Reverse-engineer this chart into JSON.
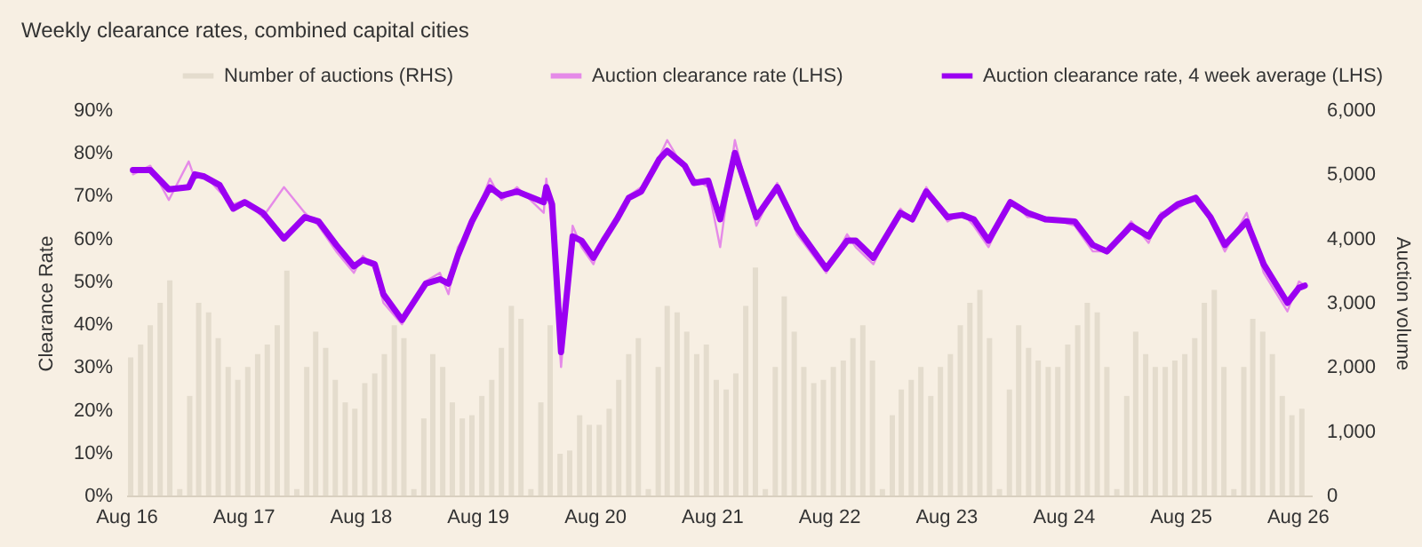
{
  "chart_data": {
    "type": "line",
    "title": "Weekly clearance rates, combined capital cities",
    "ylabel": "Clearance Rate",
    "y2label": "Auction volume",
    "legend": "top",
    "xlim": [
      "2016-08-01",
      "2026-09-15"
    ],
    "xticks": [
      {
        "value": "2016-08-01",
        "label": "Aug 16"
      },
      {
        "value": "2017-08-01",
        "label": "Aug 17"
      },
      {
        "value": "2018-08-01",
        "label": "Aug 18"
      },
      {
        "value": "2019-08-01",
        "label": "Aug 19"
      },
      {
        "value": "2020-08-01",
        "label": "Aug 20"
      },
      {
        "value": "2021-08-01",
        "label": "Aug 21"
      },
      {
        "value": "2022-08-01",
        "label": "Aug 22"
      },
      {
        "value": "2023-08-01",
        "label": "Aug 23"
      },
      {
        "value": "2024-08-01",
        "label": "Aug 24"
      },
      {
        "value": "2025-08-01",
        "label": "Aug 25"
      },
      {
        "value": "2026-08-01",
        "label": "Aug 26"
      }
    ],
    "ylim": [
      0,
      90
    ],
    "yticks": [
      {
        "value": 0,
        "label": "0%"
      },
      {
        "value": 10,
        "label": "10%"
      },
      {
        "value": 20,
        "label": "20%"
      },
      {
        "value": 30,
        "label": "30%"
      },
      {
        "value": 40,
        "label": "40%"
      },
      {
        "value": 50,
        "label": "50%"
      },
      {
        "value": 60,
        "label": "60%"
      },
      {
        "value": 70,
        "label": "70%"
      },
      {
        "value": 80,
        "label": "80%"
      },
      {
        "value": 90,
        "label": "90%"
      }
    ],
    "y2lim": [
      0,
      6000
    ],
    "y2ticks": [
      0,
      {
        "value": 1000,
        "label": "1,000"
      },
      {
        "value": 2000,
        "label": "2,000"
      },
      {
        "value": 3000,
        "label": "3,000"
      },
      {
        "value": 4000,
        "label": "4,000"
      },
      {
        "value": 5000,
        "label": "5,000"
      },
      {
        "value": 6000,
        "label": "6,000"
      }
    ],
    "series": [
      {
        "name": "Number of auctions (RHS)",
        "type": "bar",
        "axis": "y2",
        "color": "#e4dccd",
        "x": [
          "2016-08-15",
          "2016-09-15",
          "2016-10-15",
          "2016-11-15",
          "2016-12-15",
          "2017-01-15",
          "2017-02-15",
          "2017-03-15",
          "2017-04-15",
          "2017-05-15",
          "2017-06-15",
          "2017-07-15",
          "2017-08-15",
          "2017-09-15",
          "2017-10-15",
          "2017-11-15",
          "2017-12-15",
          "2018-01-15",
          "2018-02-15",
          "2018-03-15",
          "2018-04-15",
          "2018-05-15",
          "2018-06-15",
          "2018-07-15",
          "2018-08-15",
          "2018-09-15",
          "2018-10-15",
          "2018-11-15",
          "2018-12-15",
          "2019-01-15",
          "2019-02-15",
          "2019-03-15",
          "2019-04-15",
          "2019-05-15",
          "2019-06-15",
          "2019-07-15",
          "2019-08-15",
          "2019-09-15",
          "2019-10-15",
          "2019-11-15",
          "2019-12-15",
          "2020-01-15",
          "2020-02-15",
          "2020-03-15",
          "2020-04-15",
          "2020-05-15",
          "2020-06-15",
          "2020-07-15",
          "2020-08-15",
          "2020-09-15",
          "2020-10-15",
          "2020-11-15",
          "2020-12-15",
          "2021-01-15",
          "2021-02-15",
          "2021-03-15",
          "2021-04-15",
          "2021-05-15",
          "2021-06-15",
          "2021-07-15",
          "2021-08-15",
          "2021-09-15",
          "2021-10-15",
          "2021-11-15",
          "2021-12-15",
          "2022-01-15",
          "2022-02-15",
          "2022-03-15",
          "2022-04-15",
          "2022-05-15",
          "2022-06-15",
          "2022-07-15",
          "2022-08-15",
          "2022-09-15",
          "2022-10-15",
          "2022-11-15",
          "2022-12-15",
          "2023-01-15",
          "2023-02-15",
          "2023-03-15",
          "2023-04-15",
          "2023-05-15",
          "2023-06-15",
          "2023-07-15",
          "2023-08-15",
          "2023-09-15",
          "2023-10-15",
          "2023-11-15",
          "2023-12-15",
          "2024-01-15",
          "2024-02-15",
          "2024-03-15",
          "2024-04-15",
          "2024-05-15",
          "2024-06-15",
          "2024-07-15",
          "2024-08-15",
          "2024-09-15",
          "2024-10-15",
          "2024-11-15",
          "2024-12-15",
          "2025-01-15",
          "2025-02-15",
          "2025-03-15",
          "2025-04-15",
          "2025-05-15",
          "2025-06-15",
          "2025-07-15",
          "2025-08-15",
          "2025-09-15",
          "2025-10-15",
          "2025-11-15",
          "2025-12-15",
          "2026-01-15",
          "2026-02-15",
          "2026-03-15",
          "2026-04-15",
          "2026-05-15",
          "2026-06-15",
          "2026-07-15",
          "2026-08-15"
        ],
        "values": [
          2150,
          2350,
          2650,
          3000,
          3350,
          100,
          1550,
          3000,
          2850,
          2450,
          2000,
          1800,
          2000,
          2200,
          2350,
          2650,
          3500,
          100,
          2000,
          2550,
          2300,
          1800,
          1450,
          1350,
          1750,
          1900,
          2200,
          2650,
          2450,
          100,
          1200,
          2200,
          2000,
          1450,
          1200,
          1250,
          1550,
          1800,
          2300,
          2950,
          2750,
          100,
          1450,
          2650,
          650,
          700,
          1250,
          1100,
          1100,
          1350,
          1800,
          2200,
          2450,
          100,
          2000,
          2950,
          2850,
          2550,
          2200,
          2350,
          1800,
          1650,
          1900,
          2950,
          3550,
          100,
          2000,
          3100,
          2550,
          2000,
          1750,
          1800,
          2000,
          2100,
          2450,
          2650,
          2100,
          100,
          1250,
          1650,
          1800,
          2000,
          1550,
          2000,
          2200,
          2650,
          3000,
          3200,
          2450,
          100,
          1650,
          2650,
          2300,
          2100,
          2000,
          2000,
          2350,
          2650,
          3000,
          2850,
          2000,
          100,
          1550,
          2550,
          2200,
          2000,
          2000,
          2100,
          2200,
          2450,
          3000,
          3200,
          2000,
          100,
          2000,
          2750,
          2550,
          2200,
          1550,
          1250,
          1350
        ]
      },
      {
        "name": "Auction clearance rate (LHS)",
        "color": "#e58ae8",
        "x": [
          "2016-08-22",
          "2016-10-15",
          "2016-12-12",
          "2017-02-12",
          "2017-03-03",
          "2017-04-01",
          "2017-05-19",
          "2017-07-01",
          "2017-08-06",
          "2017-10-01",
          "2017-12-06",
          "2018-02-09",
          "2018-03-24",
          "2018-05-18",
          "2018-07-12",
          "2018-08-09",
          "2018-09-15",
          "2018-10-12",
          "2018-12-09",
          "2019-02-21",
          "2019-04-06",
          "2019-05-03",
          "2019-06-01",
          "2019-07-15",
          "2019-09-09",
          "2019-10-15",
          "2019-12-03",
          "2020-02-24",
          "2020-03-03",
          "2020-03-21",
          "2020-04-18",
          "2020-05-24",
          "2020-06-21",
          "2020-07-28",
          "2020-08-24",
          "2020-10-09",
          "2020-11-15",
          "2020-12-24",
          "2021-02-18",
          "2021-03-15",
          "2021-05-09",
          "2021-06-06",
          "2021-07-21",
          "2021-08-27",
          "2021-10-12",
          "2021-12-18",
          "2022-02-21",
          "2022-04-24",
          "2022-07-24",
          "2022-09-27",
          "2022-10-24",
          "2022-12-18",
          "2023-03-12",
          "2023-04-18",
          "2023-06-01",
          "2023-08-06",
          "2023-09-21",
          "2023-10-27",
          "2023-12-12",
          "2024-02-18",
          "2024-04-12",
          "2024-06-06",
          "2024-09-06",
          "2024-11-01",
          "2024-12-15",
          "2025-03-01",
          "2025-04-24",
          "2025-06-01",
          "2025-07-24",
          "2025-09-18",
          "2025-11-03",
          "2025-12-18",
          "2026-02-24",
          "2026-04-18",
          "2026-07-01",
          "2026-08-06",
          "2026-08-24"
        ],
        "values": [
          75,
          77,
          69,
          78,
          74,
          75,
          71,
          68,
          69,
          65,
          72,
          66,
          63,
          57,
          52,
          56,
          53,
          45,
          40,
          50,
          52,
          47,
          58,
          63,
          74,
          69,
          72,
          66,
          74,
          62,
          30,
          63,
          58,
          54,
          60,
          65,
          70,
          72,
          79,
          83,
          76,
          74,
          72,
          58,
          83,
          63,
          73,
          61,
          52,
          61,
          58,
          54,
          67,
          64,
          72,
          64,
          66,
          63,
          58,
          69,
          65,
          65,
          63,
          57,
          57,
          64,
          59,
          66,
          67,
          70,
          64,
          57,
          66,
          52,
          43,
          50,
          49
        ]
      },
      {
        "name": "Auction clearance rate, 4 week average (LHS)",
        "color": "#9b00f2",
        "x": [
          "2016-08-22",
          "2016-10-15",
          "2016-12-12",
          "2017-02-12",
          "2017-03-03",
          "2017-04-01",
          "2017-05-19",
          "2017-07-01",
          "2017-08-06",
          "2017-10-01",
          "2017-12-06",
          "2018-02-09",
          "2018-03-24",
          "2018-05-18",
          "2018-07-12",
          "2018-08-09",
          "2018-09-15",
          "2018-10-12",
          "2018-12-09",
          "2019-02-21",
          "2019-04-06",
          "2019-05-03",
          "2019-06-01",
          "2019-07-15",
          "2019-09-09",
          "2019-10-15",
          "2019-12-03",
          "2020-02-24",
          "2020-03-03",
          "2020-03-21",
          "2020-04-18",
          "2020-05-24",
          "2020-06-21",
          "2020-07-28",
          "2020-08-24",
          "2020-10-09",
          "2020-11-15",
          "2020-12-24",
          "2021-02-18",
          "2021-03-15",
          "2021-05-09",
          "2021-06-06",
          "2021-07-21",
          "2021-08-27",
          "2021-10-12",
          "2021-12-18",
          "2022-02-21",
          "2022-04-24",
          "2022-07-24",
          "2022-09-27",
          "2022-10-24",
          "2022-12-18",
          "2023-03-12",
          "2023-04-18",
          "2023-06-01",
          "2023-08-06",
          "2023-09-21",
          "2023-10-27",
          "2023-12-12",
          "2024-02-18",
          "2024-04-12",
          "2024-06-06",
          "2024-09-06",
          "2024-11-01",
          "2024-12-15",
          "2025-03-01",
          "2025-04-24",
          "2025-06-01",
          "2025-07-24",
          "2025-09-18",
          "2025-11-03",
          "2025-12-18",
          "2026-02-24",
          "2026-04-18",
          "2026-07-01",
          "2026-08-06",
          "2026-08-24"
        ],
        "values": [
          76,
          76,
          71.5,
          72,
          75,
          74.5,
          72.5,
          67,
          68.5,
          66,
          60,
          65,
          64,
          58.5,
          53.5,
          55,
          54,
          47,
          41,
          49.5,
          50.5,
          49.5,
          56,
          64,
          72,
          70,
          71,
          68.5,
          72,
          68,
          33.5,
          60.5,
          59.5,
          55.5,
          59,
          64.5,
          69.5,
          71,
          78.5,
          80.5,
          77,
          73,
          73.5,
          64.5,
          80,
          65,
          72,
          62.5,
          53,
          59.5,
          59.5,
          55.5,
          66,
          64.5,
          71,
          65,
          65.5,
          64.5,
          59.5,
          68.5,
          66,
          64.5,
          64,
          58.5,
          57,
          63,
          60.5,
          65,
          68,
          69.5,
          65,
          58.5,
          64,
          54,
          45,
          48.5,
          49
        ]
      }
    ]
  }
}
